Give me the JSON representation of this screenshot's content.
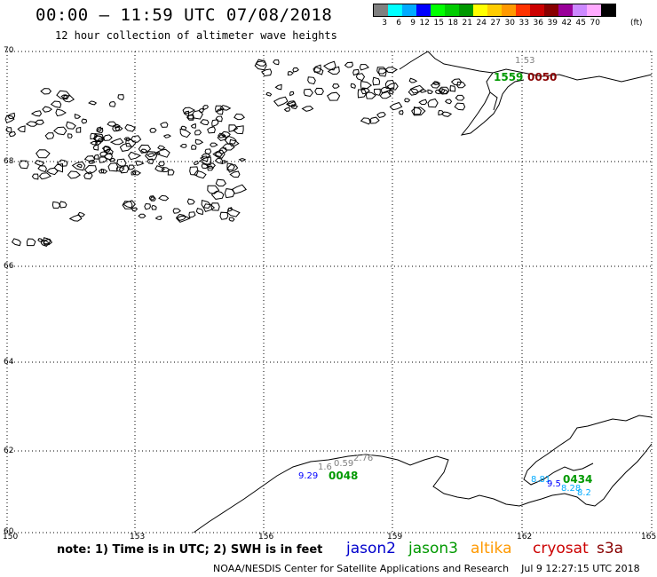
{
  "header": {
    "title": "00:00 – 11:59 UTC 07/08/2018",
    "subtitle": "12 hour collection of altimeter wave heights"
  },
  "color_scale": {
    "colors": [
      "#808080",
      "#00ffff",
      "#00aaff",
      "#0000ff",
      "#00ff00",
      "#00cc00",
      "#009900",
      "#ffff00",
      "#ffcc00",
      "#ff9900",
      "#ff3300",
      "#cc0000",
      "#880000",
      "#990099",
      "#cc88ff",
      "#ffaaff",
      "#000000"
    ],
    "labels": [
      "3",
      "6",
      "9",
      "12",
      "15",
      "18",
      "21",
      "24",
      "27",
      "30",
      "33",
      "36",
      "39",
      "42",
      "45",
      "70"
    ],
    "unit": "(ft)"
  },
  "map": {
    "lat_labels": [
      "70",
      "68",
      "66",
      "64",
      "62",
      "60"
    ],
    "lon_labels": [
      "150",
      "153",
      "156",
      "159",
      "162",
      "165"
    ],
    "satellite_pass_labels": [
      {
        "text": "1:53",
        "color": "#808080"
      },
      {
        "text": "1559",
        "color": "#009900"
      },
      {
        "text": "0050",
        "color": "#880000"
      },
      {
        "text": "9.29",
        "color": "#0000ff"
      },
      {
        "text": "1.6",
        "color": "#808080"
      },
      {
        "text": "0.59",
        "color": "#808080"
      },
      {
        "text": "2.76",
        "color": "#808080"
      },
      {
        "text": "0048",
        "color": "#009900"
      },
      {
        "text": "8.81",
        "color": "#00aaff"
      },
      {
        "text": "9.5",
        "color": "#0000ff"
      },
      {
        "text": "0434",
        "color": "#009900"
      },
      {
        "text": "8.28",
        "color": "#00aaff"
      },
      {
        "text": "8.2",
        "color": "#00aaff"
      }
    ]
  },
  "note": "note: 1) Time is in UTC; 2) SWH is in feet",
  "legend": [
    {
      "name": "jason2",
      "color": "#0000cc"
    },
    {
      "name": "jason3",
      "color": "#009900"
    },
    {
      "name": "altika",
      "color": "#ff9900"
    },
    {
      "name": "cryosat",
      "color": "#cc0000"
    },
    {
      "name": "s3a",
      "color": "#880000"
    }
  ],
  "footer": {
    "credit": "NOAA/NESDIS Center for Satellite Applications and Research",
    "generated": "Jul  9 12:27:15 UTC 2018"
  }
}
